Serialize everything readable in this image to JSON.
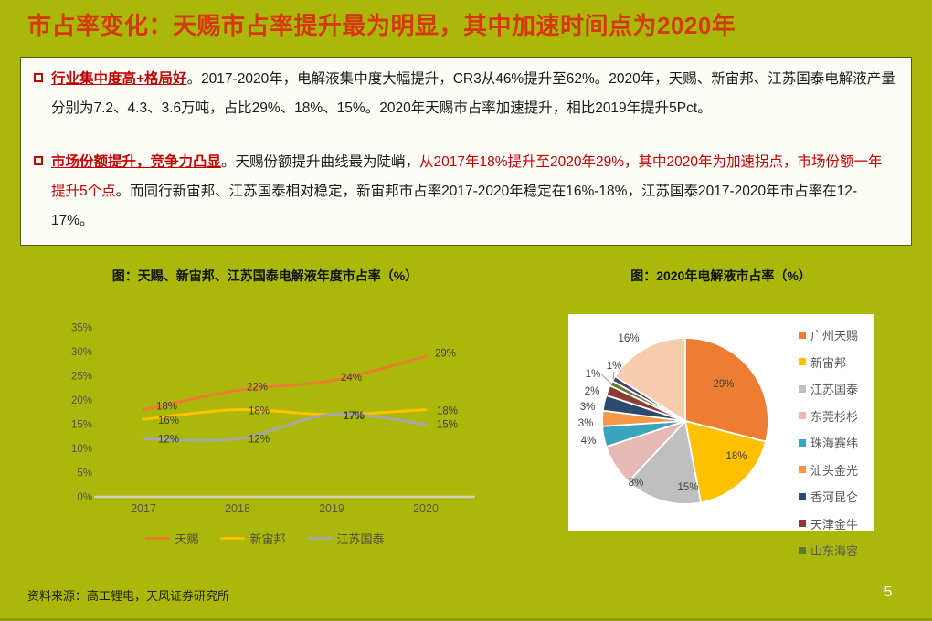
{
  "slide": {
    "title": "市占率变化：天赐市占率提升最为明显，其中加速时间点为2020年",
    "source_note": "资料来源：高工锂电，天风证券研究所",
    "page_number": "5",
    "colors": {
      "background": "#AAB80A",
      "title_red": "#D6380E",
      "emphasis_red": "#C00000"
    }
  },
  "paragraphs": [
    {
      "runs": [
        {
          "text": "行业集中度高+格局好",
          "style": "heading"
        },
        {
          "text": "。2017-2020年，电解液集中度大幅提升，CR3从46%提升至62%。2020年，天赐、新宙邦、江苏国泰电解液产量分别为7.2、4.3、3.6万吨，占比29%、18%、15%。2020年天赐市占率加速提升，相比2019年提升5Pct。",
          "style": "normal"
        }
      ]
    },
    {
      "runs": [
        {
          "text": "市场份额提升，竞争力凸显",
          "style": "heading"
        },
        {
          "text": "。天赐份额提升曲线最为陡峭，",
          "style": "normal"
        },
        {
          "text": "从2017年18%提升至2020年29%，其中2020年为加速拐点，市场份额一年提升5个点",
          "style": "red"
        },
        {
          "text": "。而同行新宙邦、江苏国泰相对稳定，新宙邦市占率2017-2020年稳定在16%-18%，江苏国泰2017-2020年市占率在12-17%。",
          "style": "normal"
        }
      ]
    }
  ],
  "chart_data": [
    {
      "type": "line",
      "title": "图：天赐、新宙邦、江苏国泰电解液年度市占率（%）",
      "categories": [
        "2017",
        "2018",
        "2019",
        "2020"
      ],
      "series": [
        {
          "name": "天赐",
          "color": "#ED7D31",
          "values": [
            18,
            22,
            24,
            29
          ]
        },
        {
          "name": "新宙邦",
          "color": "#FFC000",
          "values": [
            16,
            18,
            17,
            18
          ]
        },
        {
          "name": "江苏国泰",
          "color": "#A6A6A6",
          "values": [
            12,
            12,
            17,
            15
          ]
        }
      ],
      "xlabel": "",
      "ylabel": "",
      "ylim": [
        0,
        35
      ],
      "ytick_step": 5,
      "ytick_format": "percent",
      "grid": false,
      "data_labels": true,
      "legend_position": "bottom"
    },
    {
      "type": "pie",
      "title": "图：2020年电解液市占率（%）",
      "slices": [
        {
          "label": "广州天赐",
          "value": 29,
          "color": "#ED7D31",
          "in_legend": true
        },
        {
          "label": "新宙邦",
          "value": 18,
          "color": "#FFC000",
          "in_legend": true
        },
        {
          "label": "江苏国泰",
          "value": 15,
          "color": "#BFBFBF",
          "in_legend": true
        },
        {
          "label": "东莞杉杉",
          "value": 8,
          "color": "#E7B9B5",
          "in_legend": true
        },
        {
          "label": "珠海赛纬",
          "value": 4,
          "color": "#3BA4BD",
          "in_legend": true
        },
        {
          "label": "汕头金光",
          "value": 3,
          "color": "#F79646",
          "in_legend": true
        },
        {
          "label": "香河昆仑",
          "value": 3,
          "color": "#2B4A6E",
          "in_legend": true
        },
        {
          "label": "天津金牛",
          "value": 2,
          "color": "#8E3B33",
          "in_legend": true
        },
        {
          "label": "山东海容",
          "value": 1,
          "color": "#5E7A2E",
          "in_legend": true
        },
        {
          "label": "",
          "value": 1,
          "color": "#483F70",
          "in_legend": false
        },
        {
          "label": "",
          "value": 16,
          "color": "#F8CDAE",
          "in_legend": false
        }
      ],
      "start_angle": 0,
      "direction": "clockwise",
      "data_labels": true,
      "legend_position": "right"
    }
  ]
}
